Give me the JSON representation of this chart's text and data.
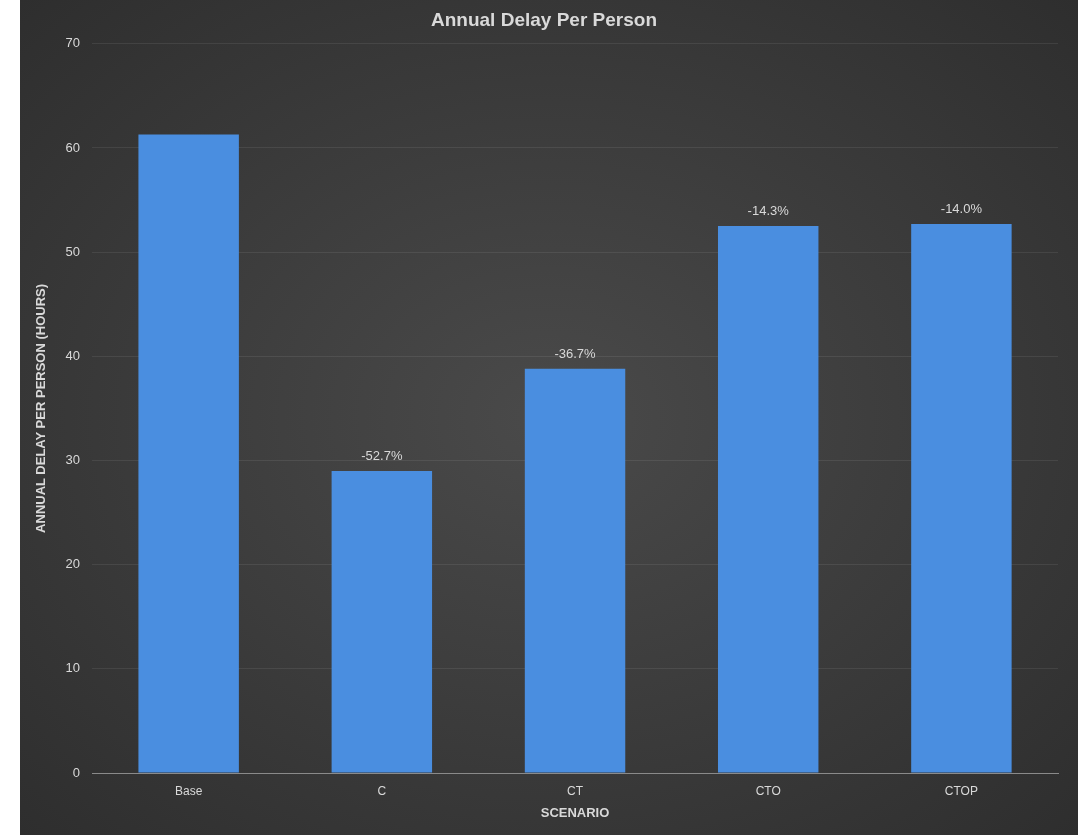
{
  "chart_data": {
    "type": "bar",
    "title": "Annual Delay Per Person",
    "xlabel": "SCENARIO",
    "ylabel": "ANNUAL DELAY PER PERSON (HOURS)",
    "categories": [
      "Base",
      "C",
      "CT",
      "CTO",
      "CTOP"
    ],
    "values": [
      61.3,
      29.0,
      38.8,
      52.5,
      52.7
    ],
    "annotations": [
      {
        "text": "-52.7%",
        "x": "C",
        "y": 29.0
      },
      {
        "text": "-36.7%",
        "x": "CT",
        "y": 38.8
      },
      {
        "text": "-14.3%",
        "x": "CTO",
        "y": 52.5
      },
      {
        "text": "-14.0%",
        "x": "CTOP",
        "y": 52.7
      }
    ],
    "color": "#4a8ee0",
    "ylim": [
      0,
      70
    ],
    "yticks": [
      0,
      10,
      20,
      30,
      40,
      50,
      60,
      70
    ],
    "grid": "y",
    "legend": false
  }
}
